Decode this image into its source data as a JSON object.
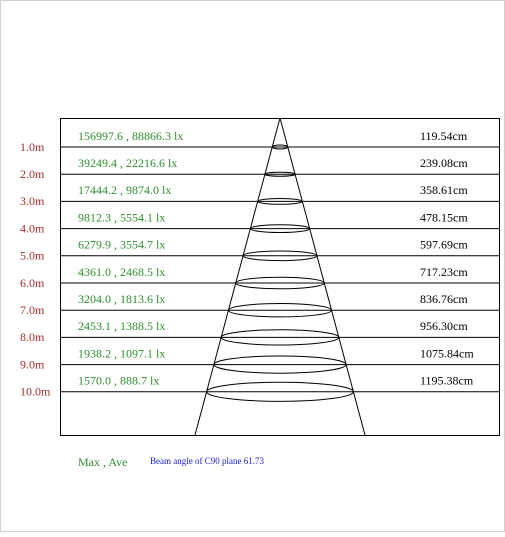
{
  "rows": [
    {
      "distance": "1.0m",
      "illuminance": "156997.6 , 88866.3 lx",
      "diameter": "119.54cm"
    },
    {
      "distance": "2.0m",
      "illuminance": "39249.4 , 22216.6 lx",
      "diameter": "239.08cm"
    },
    {
      "distance": "3.0m",
      "illuminance": "17444.2 , 9874.0 lx",
      "diameter": "358.61cm"
    },
    {
      "distance": "4.0m",
      "illuminance": "9812.3 , 5554.1 lx",
      "diameter": "478.15cm"
    },
    {
      "distance": "5.0m",
      "illuminance": "6279.9 , 3554.7 lx",
      "diameter": "597.69cm"
    },
    {
      "distance": "6.0m",
      "illuminance": "4361.0 , 2468.5 lx",
      "diameter": "717.23cm"
    },
    {
      "distance": "7.0m",
      "illuminance": "3204.0 , 1813.6 lx",
      "diameter": "836.76cm"
    },
    {
      "distance": "8.0m",
      "illuminance": "2453.1 , 1388.5 lx",
      "diameter": "956.30cm"
    },
    {
      "distance": "9.0m",
      "illuminance": "1938.2 , 1097.1 lx",
      "diameter": "1075.84cm"
    },
    {
      "distance": "10.0m",
      "illuminance": "1570.0 , 888.7 lx",
      "diameter": "1195.38cm"
    }
  ],
  "legend": "Max , Ave",
  "beam_angle": "Beam angle of C90 plane 61.73"
}
